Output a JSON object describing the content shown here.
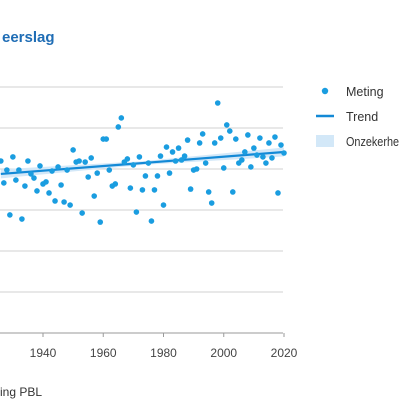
{
  "chart_data": {
    "type": "scatter",
    "title": "eerslag",
    "xlabel": "",
    "ylabel": "",
    "xticks": [
      "1940",
      "1960",
      "1980",
      "2000",
      "2020"
    ],
    "xlim": [
      1926,
      2020
    ],
    "ylim": [
      0,
      1200
    ],
    "grid": true,
    "gridlines_y": [
      200,
      400,
      600,
      800,
      1000,
      1200
    ],
    "legend": {
      "position": "right",
      "items": [
        {
          "label": "Meting",
          "kind": "point"
        },
        {
          "label": "Trend",
          "kind": "line"
        },
        {
          "label": "Onzekerhe",
          "kind": "band"
        }
      ]
    },
    "series": [
      {
        "name": "Meting",
        "type": "scatter",
        "color": "#1a9de0",
        "x": [
          1926,
          1927,
          1928,
          1929,
          1930,
          1931,
          1932,
          1933,
          1934,
          1935,
          1936,
          1937,
          1938,
          1939,
          1940,
          1941,
          1942,
          1943,
          1944,
          1945,
          1946,
          1947,
          1948,
          1949,
          1950,
          1951,
          1952,
          1953,
          1954,
          1955,
          1956,
          1957,
          1958,
          1959,
          1960,
          1961,
          1962,
          1963,
          1964,
          1965,
          1966,
          1967,
          1968,
          1969,
          1970,
          1971,
          1972,
          1973,
          1974,
          1975,
          1976,
          1977,
          1978,
          1979,
          1980,
          1981,
          1982,
          1983,
          1984,
          1985,
          1986,
          1987,
          1988,
          1989,
          1990,
          1991,
          1992,
          1993,
          1994,
          1995,
          1996,
          1997,
          1998,
          1999,
          2000,
          2001,
          2002,
          2003,
          2004,
          2005,
          2006,
          2007,
          2008,
          2009,
          2010,
          2011,
          2012,
          2013,
          2014,
          2015,
          2016,
          2017,
          2018,
          2019,
          2020
        ],
        "y": [
          839,
          732,
          795,
          576,
          859,
          746,
          795,
          556,
          717,
          839,
          776,
          756,
          693,
          815,
          727,
          737,
          683,
          790,
          644,
          810,
          722,
          639,
          795,
          624,
          893,
          834,
          839,
          585,
          834,
          761,
          854,
          668,
          780,
          541,
          946,
          946,
          795,
          717,
          727,
          1005,
          1049,
          834,
          849,
          707,
          820,
          590,
          859,
          698,
          766,
          829,
          546,
          698,
          766,
          863,
          624,
          907,
          780,
          883,
          839,
          902,
          844,
          863,
          941,
          702,
          795,
          800,
          927,
          971,
          829,
          688,
          634,
          927,
          1122,
          951,
          805,
          1015,
          985,
          688,
          946,
          829,
          844,
          883,
          966,
          810,
          902,
          868,
          951,
          859,
          829,
          927,
          854,
          956,
          683,
          917,
          878
        ]
      },
      {
        "name": "Trend",
        "type": "line",
        "color": "#1389d6",
        "x": [
          1926,
          1973,
          2020
        ],
        "y": [
          776,
          829,
          883
        ]
      },
      {
        "name": "Onzekerhe",
        "type": "band",
        "color": "#d3e8f8",
        "x": [
          1926,
          1973,
          2020
        ],
        "lower": [
          754,
          820,
          861
        ],
        "upper": [
          798,
          838,
          905
        ]
      }
    ],
    "source": "ing PBL"
  }
}
